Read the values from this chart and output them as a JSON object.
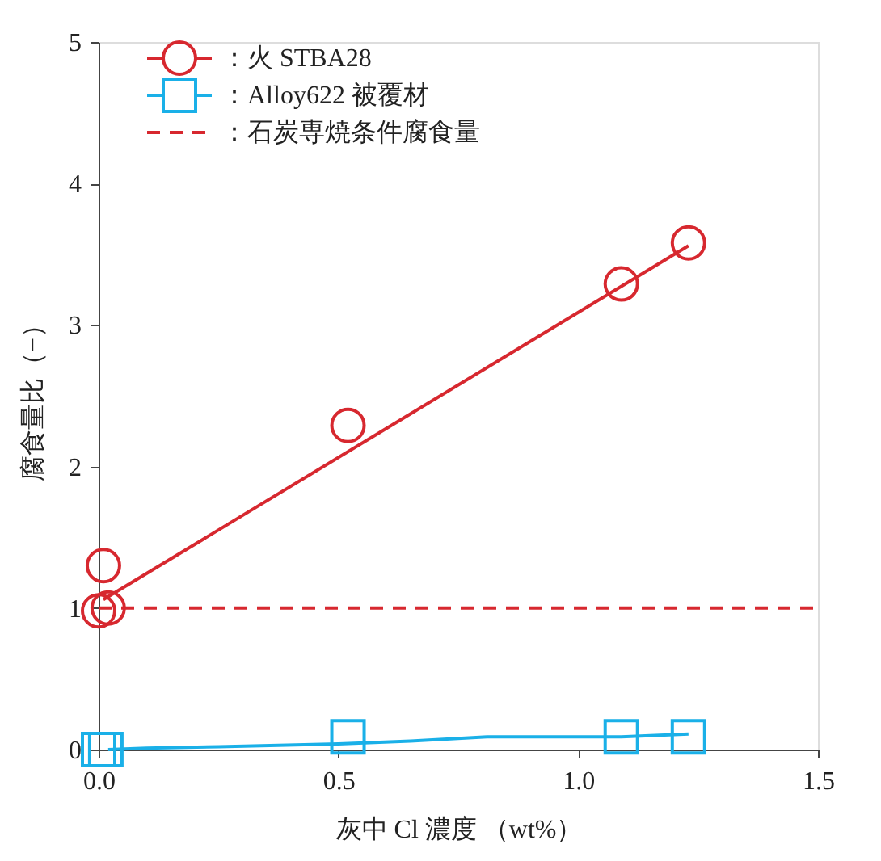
{
  "chart_data": {
    "type": "scatter",
    "xlabel": "灰中 Cl 濃度 （wt%）",
    "ylabel": "腐食量比（−）",
    "xlim": [
      0,
      1.5
    ],
    "xticks": [
      {
        "value": 0,
        "label": "0.0"
      },
      {
        "value": 0.5,
        "label": "0.5"
      },
      {
        "value": 1,
        "label": "1.0"
      },
      {
        "value": 1.5,
        "label": "1.5"
      }
    ],
    "ylim": [
      0,
      5
    ],
    "yticks": [
      0,
      1,
      2,
      3,
      4,
      5
    ],
    "grid": false,
    "legend": "top left",
    "series": [
      {
        "name": "：火 STBA28",
        "marker": "circle",
        "color": "#d7282f",
        "x": [
          0,
          0.01,
          0.02,
          0.52,
          1.09,
          1.23
        ],
        "values": [
          0.98,
          1.3,
          1.0,
          2.29,
          3.29,
          3.58
        ]
      },
      {
        "type": "line",
        "marker": "none",
        "color": "#d7282f",
        "x": [
          0.01,
          1.23
        ],
        "values": [
          1.06,
          3.56
        ]
      },
      {
        "type": "line",
        "marker": "none",
        "color": "#1ab0e8",
        "x": [
          0.02,
          0.1,
          0.25,
          0.5,
          0.65,
          0.81,
          1.09,
          1.23
        ],
        "values": [
          0.0,
          0.01,
          0.02,
          0.04,
          0.06,
          0.09,
          0.09,
          0.11
        ]
      },
      {
        "name": "：Alloy622 被覆材",
        "marker": "square",
        "color": "#1ab0e8",
        "x": [
          0,
          0.015,
          0.52,
          1.09,
          1.23
        ],
        "values": [
          0,
          0,
          0.09,
          0.09,
          0.09
        ]
      }
    ],
    "ref_lines": [
      {
        "axis": "y",
        "value": 1,
        "label": "：石炭専焼条件腐食量",
        "color": "#d7282f",
        "line_style": "dashed"
      }
    ]
  }
}
